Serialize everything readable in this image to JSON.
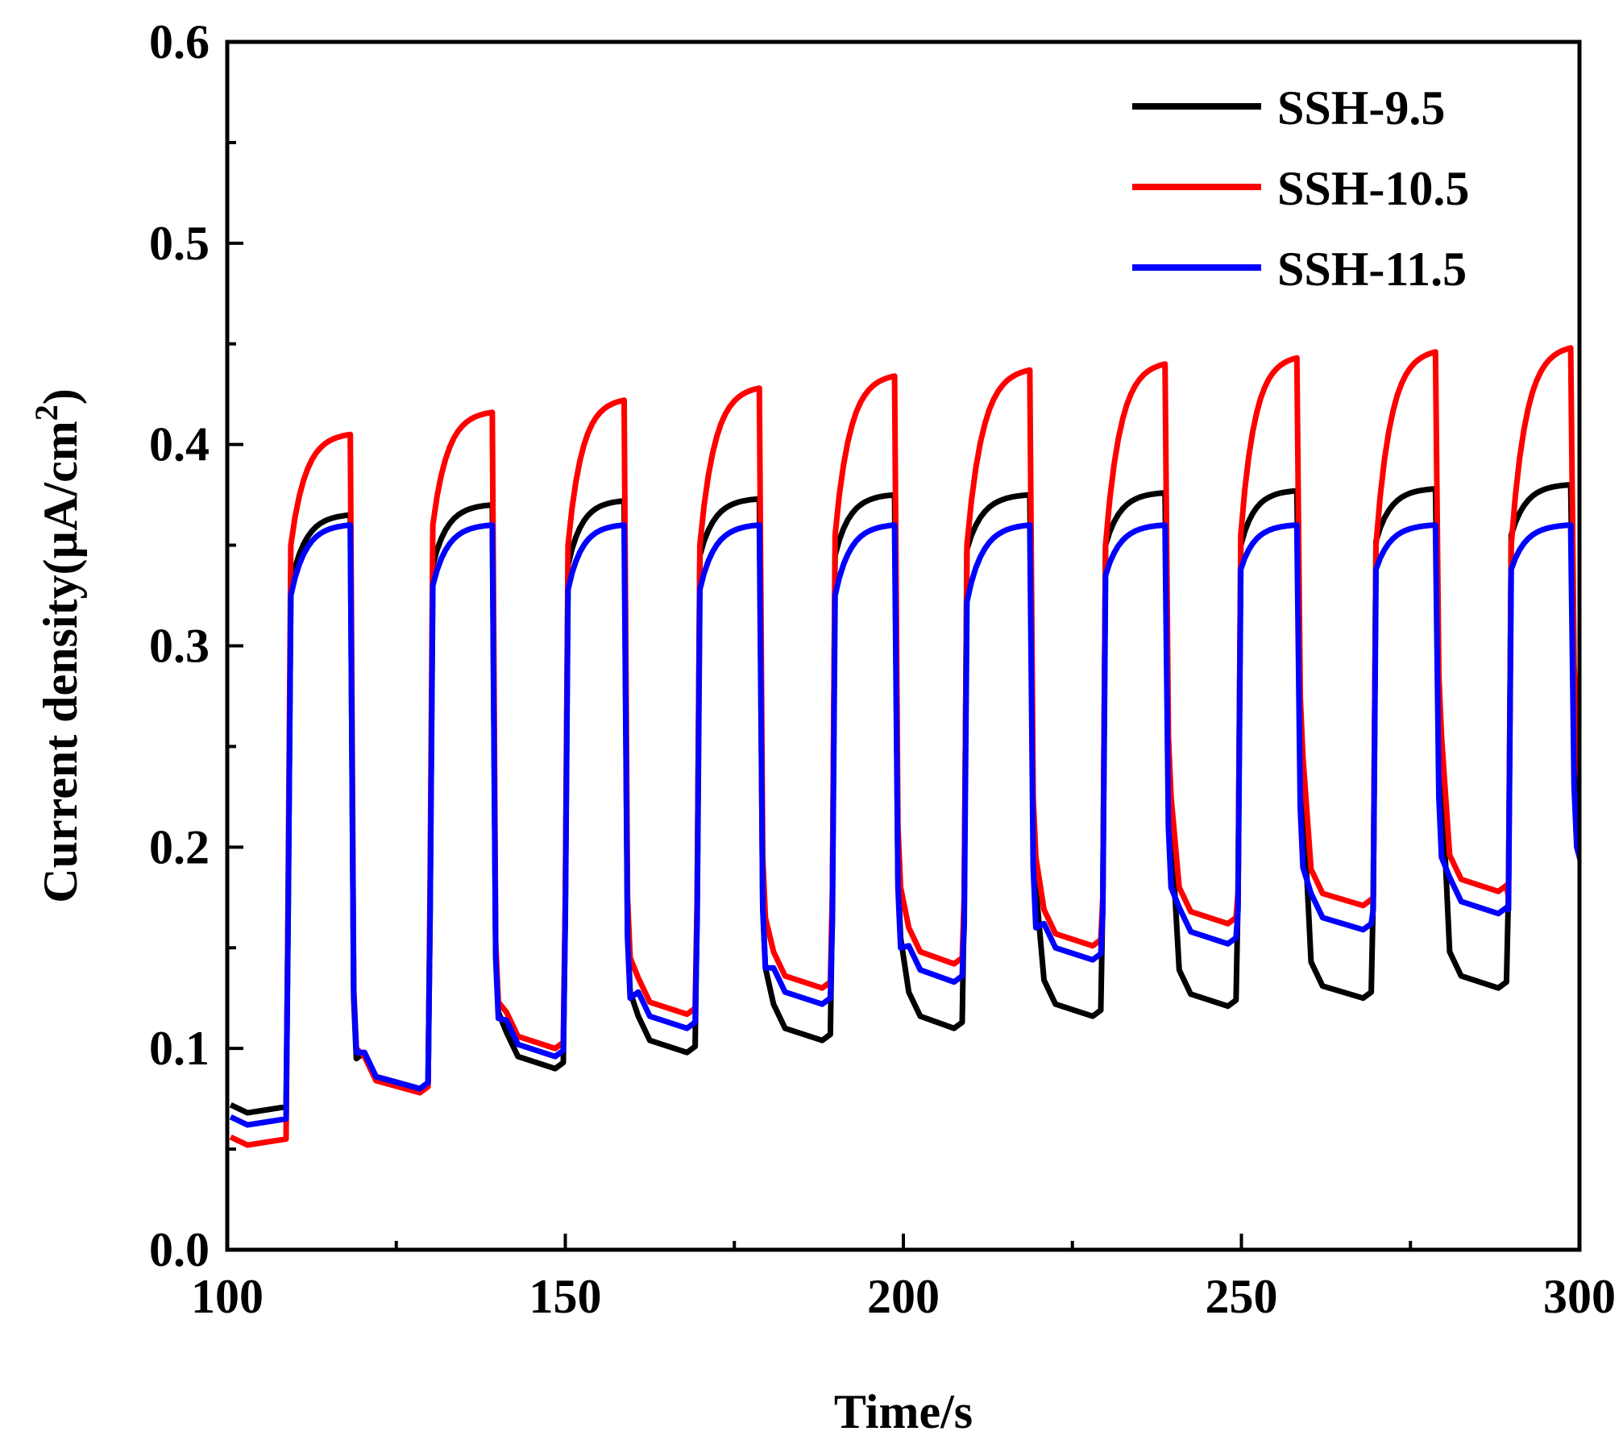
{
  "chart_data": {
    "type": "line",
    "title": "",
    "xlabel": "Time/s",
    "ylabel_main": "Current density(µA/cm",
    "ylabel_sup": "2",
    "ylabel_tail": ")",
    "xlim": [
      100,
      300
    ],
    "ylim": [
      0.0,
      0.6
    ],
    "xticks": [
      100,
      150,
      200,
      250,
      300
    ],
    "xtick_labels": [
      "100",
      "150",
      "200",
      "250",
      "300"
    ],
    "xminor": [
      125,
      175,
      225,
      275
    ],
    "yticks": [
      0.0,
      0.1,
      0.2,
      0.3,
      0.4,
      0.5,
      0.6
    ],
    "ytick_labels": [
      "0.0",
      "0.1",
      "0.2",
      "0.3",
      "0.4",
      "0.5",
      "0.6"
    ],
    "yminor": [
      0.05,
      0.15,
      0.25,
      0.35,
      0.45,
      0.55
    ],
    "grid": false,
    "legend_position": "top-right",
    "light_on_times": [
      109,
      130,
      150,
      169.5,
      189.5,
      209,
      229.5,
      249.5,
      269.5,
      289.5
    ],
    "light_off_times": [
      118.5,
      139.5,
      159,
      179,
      199,
      219,
      239,
      258.5,
      279,
      299
    ],
    "series": [
      {
        "name": "SSH-9.5",
        "color": "#000000",
        "dark_levels": [
          0.068,
          0.08,
          0.09,
          0.098,
          0.104,
          0.11,
          0.116,
          0.121,
          0.125,
          0.13
        ],
        "rise_levels": [
          0.33,
          0.34,
          0.34,
          0.345,
          0.345,
          0.348,
          0.35,
          0.35,
          0.352,
          0.355
        ],
        "plateau_levels": [
          0.365,
          0.37,
          0.372,
          0.373,
          0.375,
          0.375,
          0.376,
          0.377,
          0.378,
          0.38
        ],
        "spike_levels": [
          0.095,
          0.118,
          0.128,
          0.14,
          0.155,
          0.18,
          0.21,
          0.225,
          0.235,
          0.24
        ]
      },
      {
        "name": "SSH-10.5",
        "color": "#ff0000",
        "dark_levels": [
          0.052,
          0.078,
          0.1,
          0.117,
          0.13,
          0.142,
          0.151,
          0.162,
          0.171,
          0.178
        ],
        "rise_levels": [
          0.35,
          0.36,
          0.35,
          0.35,
          0.355,
          0.35,
          0.35,
          0.355,
          0.35,
          0.35
        ],
        "plateau_levels": [
          0.405,
          0.416,
          0.422,
          0.428,
          0.434,
          0.437,
          0.44,
          0.443,
          0.446,
          0.448
        ],
        "spike_levels": [
          0.1,
          0.123,
          0.145,
          0.165,
          0.18,
          0.195,
          0.225,
          0.245,
          0.255,
          0.26
        ]
      },
      {
        "name": "SSH-11.5",
        "color": "#0000ff",
        "dark_levels": [
          0.062,
          0.08,
          0.096,
          0.11,
          0.122,
          0.133,
          0.144,
          0.152,
          0.159,
          0.167
        ],
        "rise_levels": [
          0.325,
          0.33,
          0.328,
          0.328,
          0.325,
          0.322,
          0.335,
          0.338,
          0.338,
          0.338
        ],
        "plateau_levels": [
          0.36,
          0.36,
          0.36,
          0.36,
          0.36,
          0.36,
          0.36,
          0.36,
          0.36,
          0.36
        ],
        "spike_levels": [
          0.098,
          0.115,
          0.125,
          0.14,
          0.15,
          0.16,
          0.18,
          0.19,
          0.195,
          0.2
        ]
      }
    ]
  }
}
